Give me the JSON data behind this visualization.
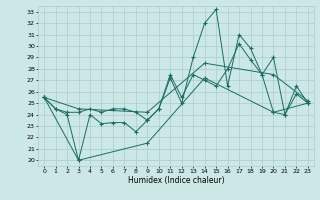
{
  "xlabel": "Humidex (Indice chaleur)",
  "xlim": [
    -0.5,
    23.5
  ],
  "ylim": [
    19.5,
    33.5
  ],
  "xticks": [
    0,
    1,
    2,
    3,
    4,
    5,
    6,
    7,
    8,
    9,
    10,
    11,
    12,
    13,
    14,
    15,
    16,
    17,
    18,
    19,
    20,
    21,
    22,
    23
  ],
  "yticks": [
    20,
    21,
    22,
    23,
    24,
    25,
    26,
    27,
    28,
    29,
    30,
    31,
    32,
    33
  ],
  "bg_color": "#cce8e6",
  "grid_color": "#aacccc",
  "line_color": "#1a6b63",
  "line1": [
    [
      0,
      25.5
    ],
    [
      1,
      24.5
    ],
    [
      2,
      24.0
    ],
    [
      3,
      20.0
    ],
    [
      4,
      24.0
    ],
    [
      5,
      23.2
    ],
    [
      6,
      23.3
    ],
    [
      7,
      23.3
    ],
    [
      8,
      22.5
    ],
    [
      9,
      23.5
    ],
    [
      10,
      24.5
    ],
    [
      11,
      27.2
    ],
    [
      12,
      25.0
    ],
    [
      13,
      29.0
    ],
    [
      14,
      32.0
    ],
    [
      15,
      33.2
    ],
    [
      16,
      26.5
    ],
    [
      17,
      31.0
    ],
    [
      18,
      29.8
    ],
    [
      19,
      27.5
    ],
    [
      20,
      29.0
    ],
    [
      21,
      24.0
    ],
    [
      22,
      26.5
    ],
    [
      23,
      25.0
    ]
  ],
  "line2": [
    [
      0,
      25.5
    ],
    [
      1,
      24.5
    ],
    [
      2,
      24.2
    ],
    [
      3,
      24.2
    ],
    [
      4,
      24.5
    ],
    [
      5,
      24.2
    ],
    [
      6,
      24.5
    ],
    [
      7,
      24.5
    ],
    [
      8,
      24.2
    ],
    [
      9,
      23.5
    ],
    [
      10,
      24.5
    ],
    [
      11,
      27.5
    ],
    [
      12,
      25.5
    ],
    [
      13,
      27.5
    ],
    [
      14,
      27.0
    ],
    [
      15,
      26.5
    ],
    [
      16,
      28.0
    ],
    [
      17,
      30.2
    ],
    [
      18,
      28.8
    ],
    [
      19,
      27.5
    ],
    [
      20,
      24.2
    ],
    [
      21,
      24.0
    ],
    [
      22,
      25.8
    ],
    [
      23,
      25.0
    ]
  ],
  "line3": [
    [
      0,
      25.5
    ],
    [
      3,
      20.0
    ],
    [
      9,
      21.5
    ],
    [
      14,
      27.2
    ],
    [
      20,
      24.2
    ],
    [
      23,
      25.0
    ]
  ],
  "line4": [
    [
      0,
      25.5
    ],
    [
      3,
      24.5
    ],
    [
      9,
      24.2
    ],
    [
      14,
      28.5
    ],
    [
      20,
      27.5
    ],
    [
      23,
      25.2
    ]
  ]
}
